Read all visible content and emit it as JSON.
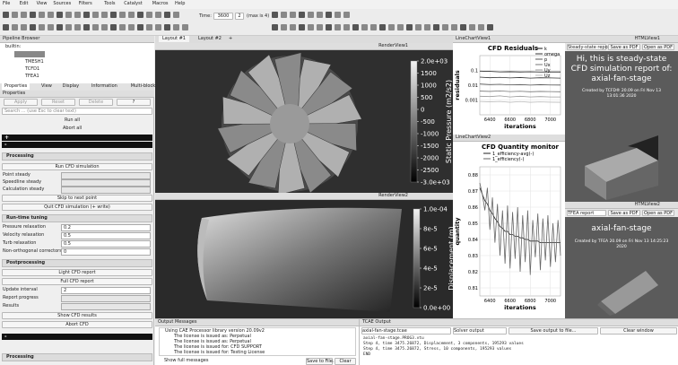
{
  "menu": [
    "File",
    "Edit",
    "View",
    "Sources",
    "Filters",
    "Tools",
    "Catalyst",
    "Macros",
    "Help"
  ],
  "toolbar": {
    "time_label": "Time:",
    "time": "3600",
    "index": "2",
    "max": "(max is 4)"
  },
  "pipeline": {
    "title": "Pipeline Browser",
    "items": [
      "builtin:",
      "TMESH1",
      "TCFD1",
      "TFEA1"
    ]
  },
  "properties": {
    "tabs": [
      "Properties",
      "View",
      "Display",
      "Information",
      "Multi-block Inspector"
    ],
    "title": "Properties",
    "buttons": [
      "Apply",
      "Reset",
      "Delete",
      "?"
    ],
    "search": "Search ... (use Esc to clear text)",
    "run_all": "Run all",
    "abort_all": "Abort all",
    "expand": "+",
    "collapse": "-",
    "processing": {
      "title": "Processing",
      "run": "Run CFD simulation",
      "modes": [
        "Point steady",
        "Speedline steady",
        "Calculation steady"
      ],
      "skip": "Skip to next point",
      "quit": "Quit CFD simulation (+ write)"
    },
    "tuning": {
      "title": "Run-time tuning",
      "fields": [
        {
          "label": "Pressure relaxation",
          "value": 0.2
        },
        {
          "label": "Velocity relaxation",
          "value": 0.5
        },
        {
          "label": "Turb relaxation",
          "value": 0.5
        },
        {
          "label": "Non-orthogonal correctors",
          "value": 0
        }
      ]
    },
    "postprocessing": {
      "title": "Postprocessing",
      "light": "Light CFD report",
      "full": "Full CFD report",
      "fields": [
        {
          "label": "Update interval",
          "value": 2
        },
        {
          "label": "Report progress"
        },
        {
          "label": "Results"
        }
      ],
      "show": "Show CFD results",
      "abort": "Abort CFD"
    },
    "collapse_bottom": "-",
    "processing_bottom": "Processing"
  },
  "layout_tabs": [
    "Layout #1",
    "Layout #2",
    "+"
  ],
  "render_view_1": {
    "title": "RenderView1",
    "colorbar": {
      "title": "Static Pressure (m2/s2)",
      "range": [
        -3000,
        2000
      ],
      "ticks": [
        {
          "value": 2000,
          "label": "2.0e+03"
        },
        1500,
        1000,
        500,
        0,
        -500,
        -1000,
        -1500,
        -2000,
        -2500,
        {
          "value": -3000,
          "label": "-3.0e+03"
        }
      ]
    }
  },
  "render_view_2": {
    "title": "RenderView2",
    "colorbar": {
      "title": "Displacement (m)",
      "range": [
        0,
        0.0001
      ],
      "ticks": [
        {
          "value": 0.0001,
          "label": "1.0e-04"
        },
        {
          "value": 8e-05,
          "label": "8e-5"
        },
        {
          "value": 6e-05,
          "label": "6e-5"
        },
        {
          "value": 4e-05,
          "label": "4e-5"
        },
        {
          "value": 2e-05,
          "label": "2e-5"
        },
        {
          "value": 0,
          "label": "0.0e+00"
        }
      ]
    }
  },
  "residuals_chart": {
    "view": "LineChartView1",
    "type": "line",
    "title": "CFD Residuals",
    "xlabel": "iterations",
    "ylabel": "residuals",
    "log_y": true,
    "x": [
      6300,
      6400,
      6500,
      6600,
      6700,
      6800,
      6900,
      7000,
      7100
    ],
    "xlim": [
      6300,
      7100
    ],
    "xticks": [
      6400,
      6600,
      6800,
      7000
    ],
    "ylim": [
      0.0001,
      1
    ],
    "yticks": [
      0.1,
      0.01,
      0.001
    ],
    "series": [
      {
        "name": "k",
        "color": "#111111",
        "values": [
          0.09,
          0.085,
          0.08,
          0.082,
          0.079,
          0.081,
          0.078,
          0.08,
          0.079
        ]
      },
      {
        "name": "omega",
        "color": "#333333",
        "values": [
          0.035,
          0.032,
          0.034,
          0.031,
          0.033,
          0.03,
          0.032,
          0.031,
          0.03
        ]
      },
      {
        "name": "p",
        "color": "#555555",
        "values": [
          0.012,
          0.011,
          0.0115,
          0.0105,
          0.011,
          0.0102,
          0.0108,
          0.0104,
          0.0103
        ]
      },
      {
        "name": "Ux",
        "color": "#777777",
        "values": [
          0.004,
          0.0038,
          0.0041,
          0.0037,
          0.0039,
          0.0036,
          0.0038,
          0.0037,
          0.0036
        ]
      },
      {
        "name": "Uy",
        "color": "#999999",
        "values": [
          0.0018,
          0.0017,
          0.0019,
          0.0016,
          0.0018,
          0.0016,
          0.0017,
          0.0016,
          0.0016
        ]
      },
      {
        "name": "Uz",
        "color": "#bbbbbb",
        "values": [
          0.0008,
          0.00075,
          0.0008,
          0.0007,
          0.00078,
          0.0007,
          0.00074,
          0.00071,
          0.0007
        ]
      }
    ]
  },
  "quantity_chart": {
    "view": "LineChartView2",
    "type": "line",
    "title": "CFD Quantity monitor",
    "xlabel": "iterations",
    "ylabel": "quantity",
    "x": [
      6300,
      6325,
      6350,
      6375,
      6400,
      6425,
      6450,
      6475,
      6500,
      6525,
      6550,
      6575,
      6600,
      6625,
      6650,
      6675,
      6700,
      6725,
      6750,
      6775,
      6800,
      6825,
      6850,
      6875,
      6900,
      6925,
      6950,
      6975,
      7000,
      7025,
      7050,
      7075,
      7100
    ],
    "xlim": [
      6300,
      7100
    ],
    "xticks": [
      6400,
      6600,
      6800,
      7000
    ],
    "ylim": [
      0.805,
      0.885
    ],
    "yticks": [
      0.81,
      0.82,
      0.83,
      0.84,
      0.85,
      0.86,
      0.87,
      0.88
    ],
    "series": [
      {
        "name": "1_efficiency-avg(-)",
        "color": "#222222",
        "values": [
          0.872,
          0.868,
          0.864,
          0.862,
          0.858,
          0.856,
          0.853,
          0.851,
          0.848,
          0.847,
          0.845,
          0.845,
          0.843,
          0.843,
          0.842,
          0.842,
          0.841,
          0.841,
          0.84,
          0.84,
          0.839,
          0.839,
          0.839,
          0.839,
          0.838,
          0.838,
          0.838,
          0.838,
          0.838,
          0.838,
          0.838,
          0.838,
          0.838
        ]
      },
      {
        "name": "1_efficiency(-)",
        "color": "#666666",
        "values": [
          0.875,
          0.868,
          0.858,
          0.872,
          0.846,
          0.866,
          0.838,
          0.862,
          0.83,
          0.858,
          0.825,
          0.861,
          0.822,
          0.857,
          0.828,
          0.86,
          0.82,
          0.855,
          0.826,
          0.858,
          0.818,
          0.852,
          0.829,
          0.856,
          0.821,
          0.853,
          0.827,
          0.855,
          0.823,
          0.85,
          0.826,
          0.852,
          0.83
        ]
      }
    ]
  },
  "html_view_1": {
    "view": "HTMLView1",
    "report": "Steady-state repo",
    "save": "Save as PDF",
    "open": "Open as PDF",
    "heading": "Hi, this is steady-state CFD simulation report of:",
    "case": "axial-fan-stage",
    "created": "Created by TCFD® 20.09 on Fri Nov 13 13:01:36 2020"
  },
  "html_view_2": {
    "view": "HTMLView2",
    "report": "TFEA report",
    "save": "Save as PDF",
    "open": "Open as PDF",
    "case": "axial-fan-stage",
    "created": "Created by TFEA 20.09 on Fri Nov 13 14:25:23 2020"
  },
  "output_messages": {
    "title": "Output Messages",
    "lines": [
      "Using CAE Processor library version 20.09v2",
      "The license is issued as: Perpetual",
      "The license is issued as: Perpetual",
      "The license is issued for: CFD SUPPORT",
      "The license is issued for: Testing License"
    ],
    "show_full": "Show full messages",
    "save": "Save to File...",
    "clear": "Clear"
  },
  "tcae_output": {
    "title": "TCAE Output",
    "file": "axial-fan-stage.tcae",
    "mode": "Solver output",
    "save": "Save output to file...",
    "clear": "Clear window",
    "lines": [
      "axial-fan-stage.PROG3.vtu",
      "Step 4, time 3475.26872, Displacement, 3 components, 195293 values",
      "Step 4, time 3475.26872, Stress, 10 components, 195293 values",
      "END"
    ]
  }
}
